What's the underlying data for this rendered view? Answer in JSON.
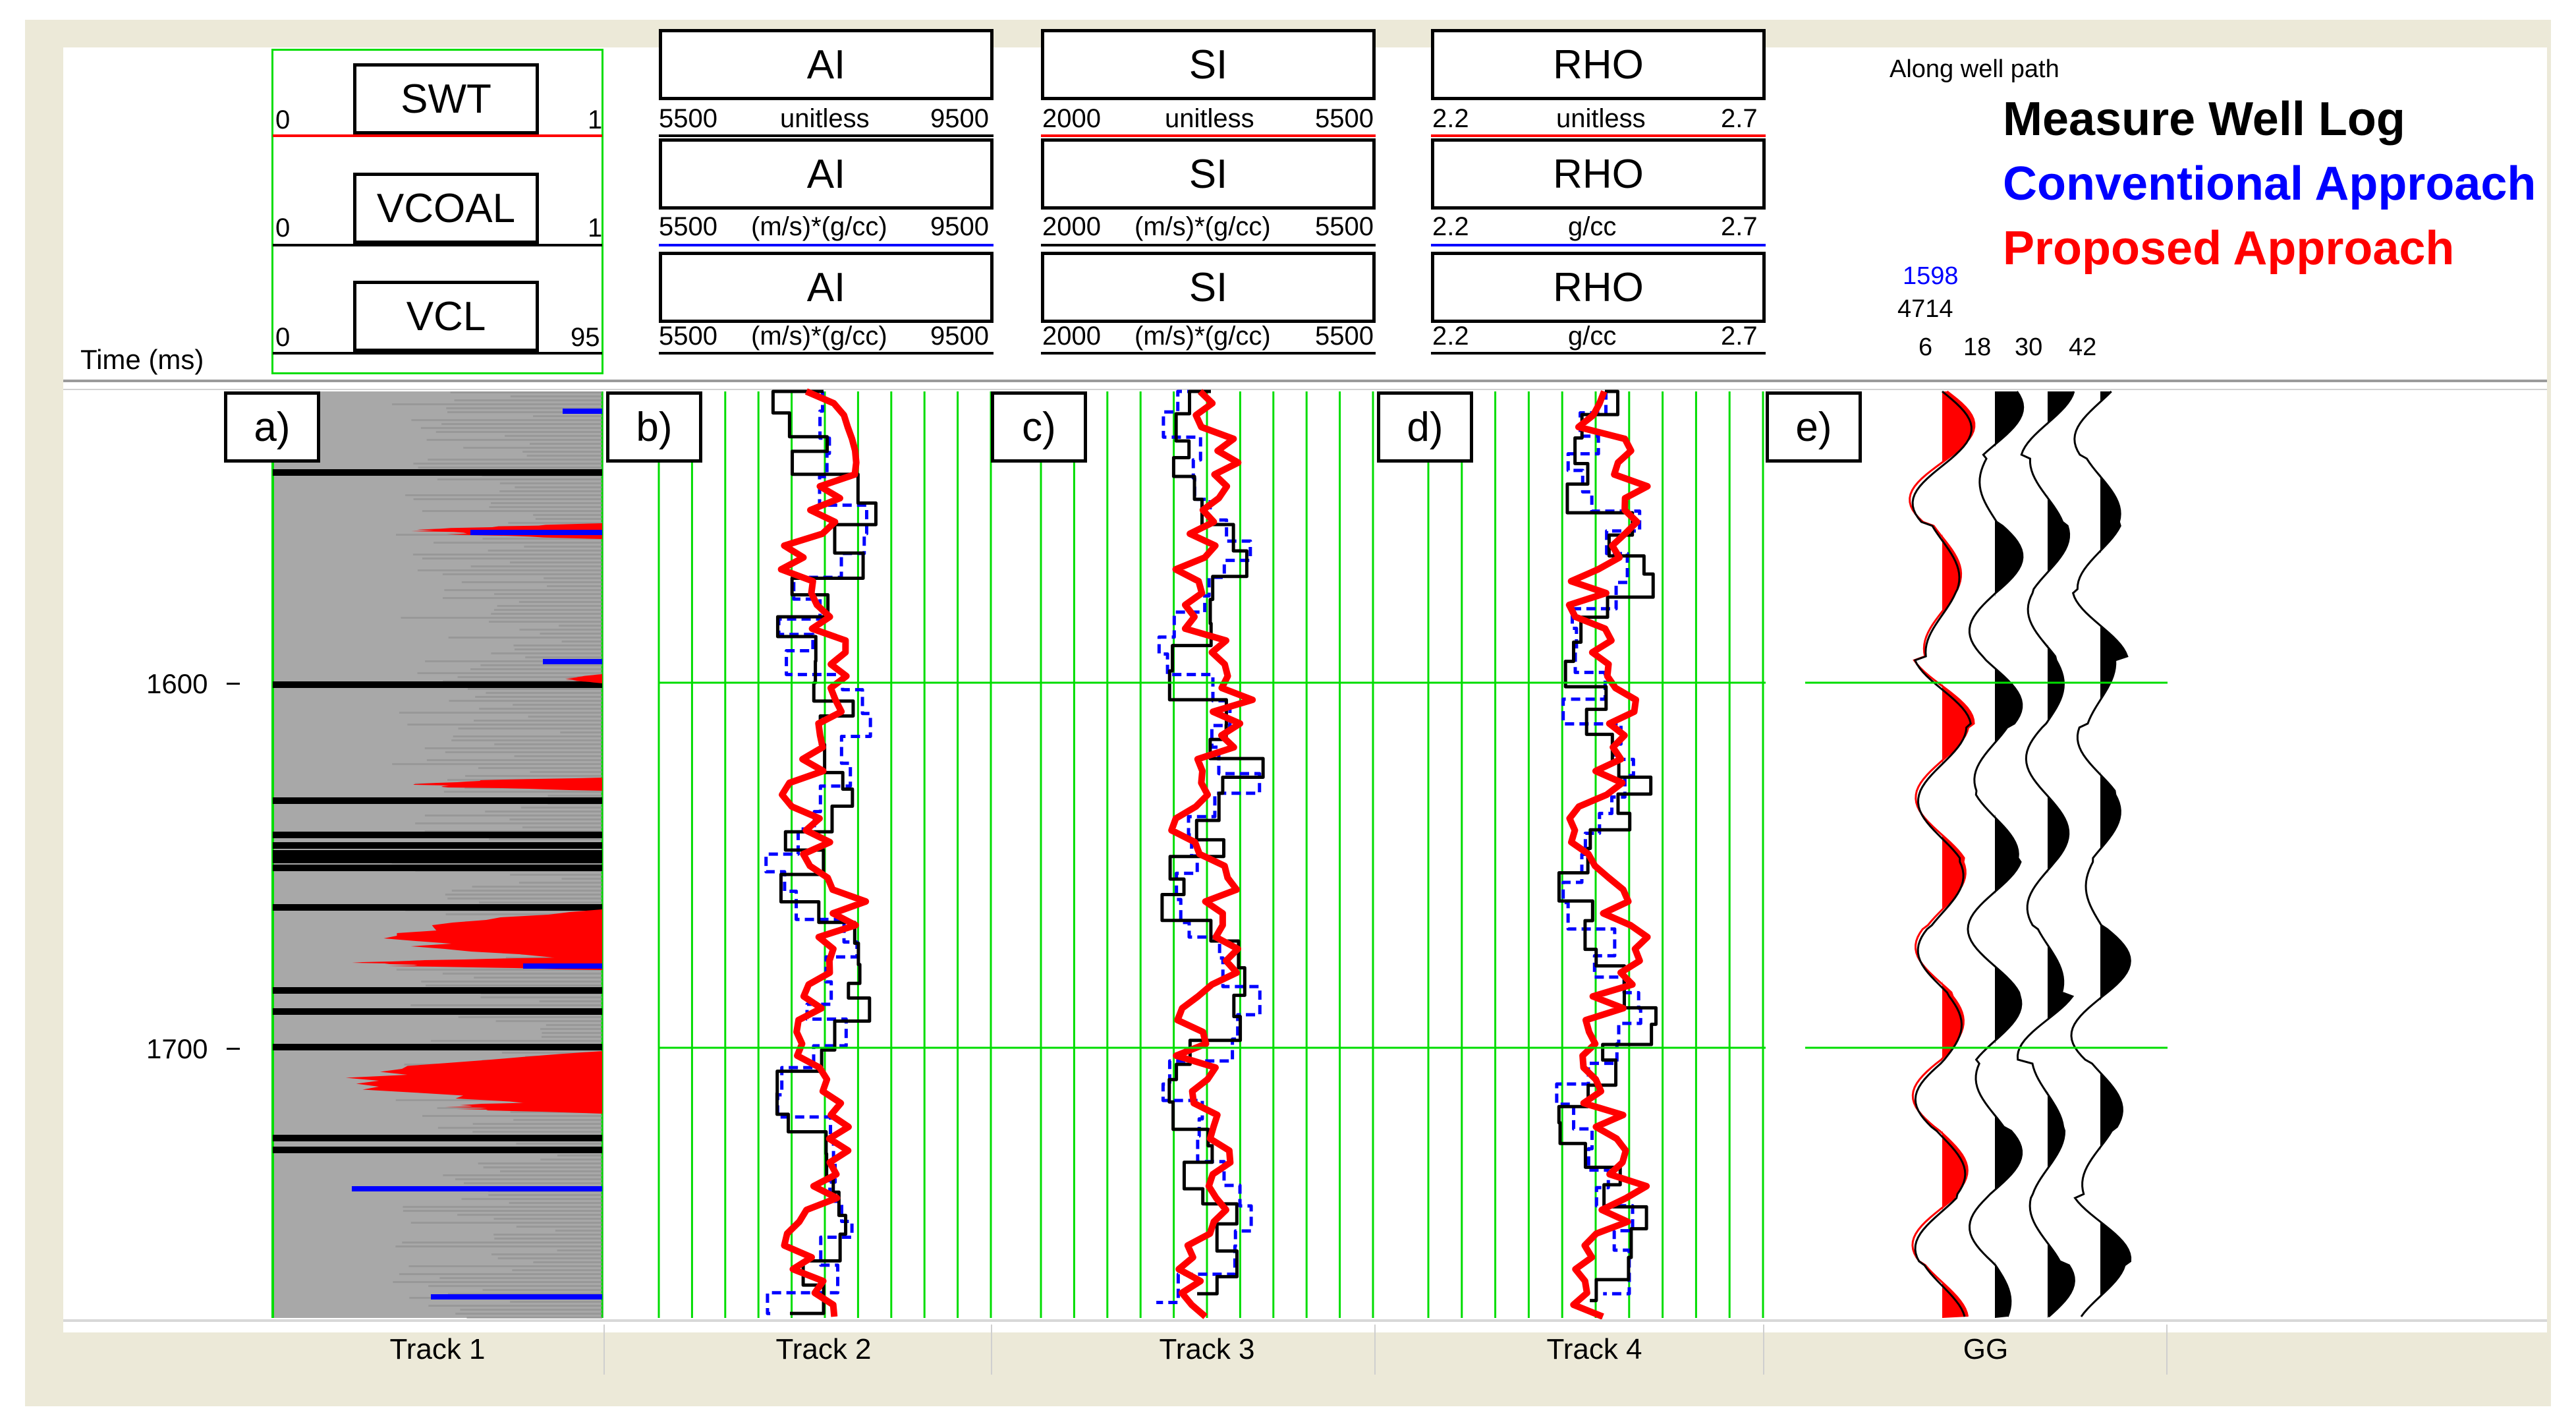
{
  "time_label": "Time (ms)",
  "time_ticks": [
    "1600",
    "1700"
  ],
  "track1": {
    "boxes": [
      {
        "name": "SWT",
        "min": "0",
        "max": "1"
      },
      {
        "name": "VCOAL",
        "min": "0",
        "max": "1"
      },
      {
        "name": "VCL",
        "min": "0",
        "max": "95"
      }
    ]
  },
  "track2": {
    "boxes": [
      {
        "name": "AI",
        "min": "5500",
        "unit": "unitless",
        "max": "9500"
      },
      {
        "name": "AI",
        "min": "5500",
        "unit": "(m/s)*(g/cc)",
        "max": "9500"
      },
      {
        "name": "AI",
        "min": "5500",
        "unit": "(m/s)*(g/cc)",
        "max": "9500"
      }
    ]
  },
  "track3": {
    "boxes": [
      {
        "name": "SI",
        "min": "2000",
        "unit": "unitless",
        "max": "5500"
      },
      {
        "name": "SI",
        "min": "2000",
        "unit": "(m/s)*(g/cc)",
        "max": "5500"
      },
      {
        "name": "SI",
        "min": "2000",
        "unit": "(m/s)*(g/cc)",
        "max": "5500"
      }
    ]
  },
  "track4": {
    "boxes": [
      {
        "name": "RHO",
        "min": "2.2",
        "unit": "unitless",
        "max": "2.7"
      },
      {
        "name": "RHO",
        "min": "2.2",
        "unit": "g/cc",
        "max": "2.7"
      },
      {
        "name": "RHO",
        "min": "2.2",
        "unit": "g/cc",
        "max": "2.7"
      }
    ]
  },
  "gg": {
    "along": "Along well path",
    "num_blue": "1598",
    "num_black": "4714",
    "ticks": [
      "6",
      "18",
      "30",
      "42"
    ]
  },
  "legend": {
    "measured": "Measure Well Log",
    "conventional": "Conventional Approach",
    "proposed": "Proposed Approach"
  },
  "panel_labels": [
    "a)",
    "b)",
    "c)",
    "d)",
    "e)"
  ],
  "footer": [
    "Track 1",
    "Track 2",
    "Track 3",
    "Track 4",
    "GG"
  ],
  "colors": {
    "measured": "#000000",
    "conventional": "#0000ff",
    "proposed": "#ff0000",
    "grid": "#00dd00",
    "lith_bg": "#a8a8a8"
  }
}
